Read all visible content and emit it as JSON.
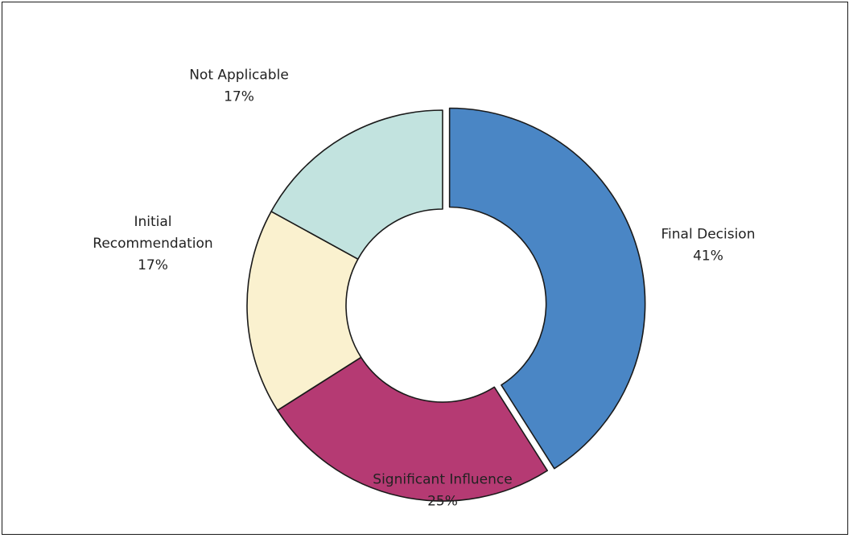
{
  "chart_data": {
    "type": "pie",
    "variant": "donut",
    "title": "",
    "slices": [
      {
        "label": [
          "Final Decision"
        ],
        "percent_label": "41%",
        "value": 41,
        "color": "#4a86c5",
        "explode": true
      },
      {
        "label": [
          "Significant Influence"
        ],
        "percent_label": "25%",
        "value": 25,
        "color": "#b53a73",
        "explode": false
      },
      {
        "label": [
          "Initial",
          "Recommendation"
        ],
        "percent_label": "17%",
        "value": 17,
        "color": "#faf1cf",
        "explode": false
      },
      {
        "label": [
          "Not Applicable"
        ],
        "percent_label": "17%",
        "value": 17,
        "color": "#c2e3df",
        "explode": false
      }
    ]
  }
}
